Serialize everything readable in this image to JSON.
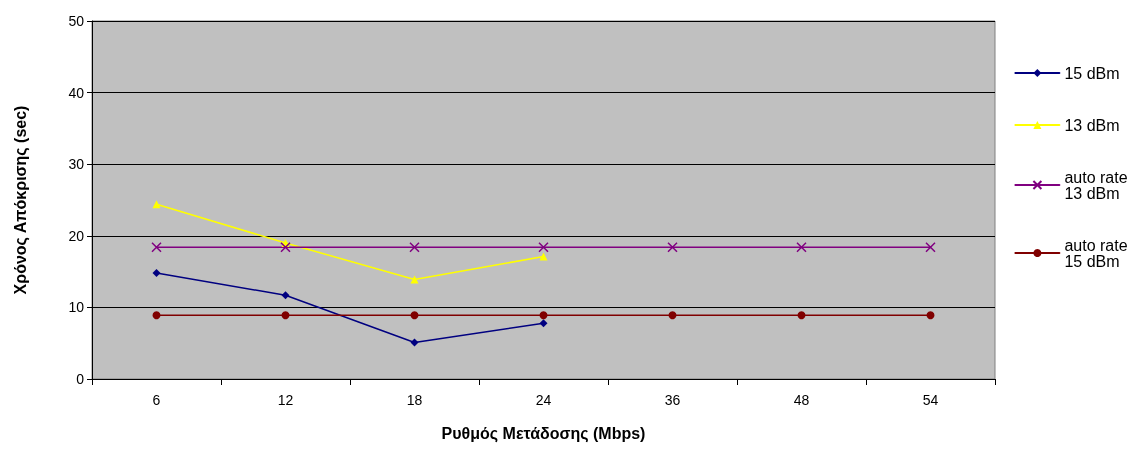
{
  "chart_data": {
    "type": "line",
    "xlabel": "Ρυθμός Μετάδοσης (Mbps)",
    "ylabel": "Χρόνος Απόκρισης (sec)",
    "categories": [
      "6",
      "12",
      "18",
      "24",
      "36",
      "48",
      "54"
    ],
    "series": [
      {
        "name": "15 dBm",
        "color": "#000080",
        "marker": "diamond",
        "values": [
          14.8,
          11.7,
          5.1,
          7.8,
          null,
          null,
          null
        ]
      },
      {
        "name": "13 dBm",
        "color": "#ffff00",
        "marker": "triangle",
        "values": [
          24.4,
          19.0,
          13.9,
          17.1,
          null,
          null,
          null
        ]
      },
      {
        "name": "auto rate 13 dBm",
        "color": "#800080",
        "marker": "cross",
        "values": [
          18.4,
          18.4,
          18.4,
          18.4,
          18.4,
          18.4,
          18.4
        ]
      },
      {
        "name": "auto rate 15 dBm",
        "color": "#800000",
        "marker": "circle",
        "values": [
          8.9,
          8.9,
          8.9,
          8.9,
          8.9,
          8.9,
          8.9
        ]
      }
    ],
    "ylim": [
      0,
      50
    ],
    "yticks": [
      0,
      10,
      20,
      30,
      40,
      50
    ],
    "grid": "y",
    "legend": "right",
    "line_style": "solid"
  }
}
